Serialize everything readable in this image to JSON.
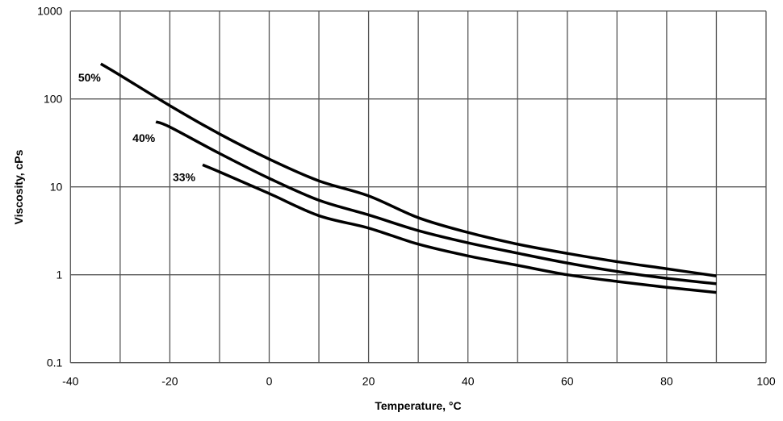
{
  "chart_data": {
    "type": "line",
    "title": "",
    "xlabel": "Temperature, °C",
    "xlabel_main": "Temperature, ",
    "xlabel_sup": "o",
    "xlabel_unit": "C",
    "ylabel": "Viscosity, cPs",
    "xlim": [
      -40,
      100
    ],
    "ylim": [
      0.1,
      1000
    ],
    "yscale": "log",
    "grid": true,
    "legend": "inline labels",
    "x_ticks": [
      "-40",
      "-20",
      "0",
      "20",
      "40",
      "60",
      "80",
      "100"
    ],
    "y_ticks": [
      "0.1",
      "1",
      "10",
      "100",
      "1000"
    ],
    "series": [
      {
        "name": "50%",
        "color": "#000000",
        "x": [
          -33.9,
          -30,
          -20,
          -10,
          0,
          10,
          20,
          30,
          40,
          50,
          60,
          70,
          80,
          90
        ],
        "y": [
          251,
          186,
          84,
          40,
          20.7,
          11.7,
          7.9,
          4.46,
          3.03,
          2.23,
          1.75,
          1.41,
          1.17,
          0.97
        ]
      },
      {
        "name": "40%",
        "color": "#000000",
        "x": [
          -22.8,
          -20,
          -10,
          0,
          10,
          20,
          30,
          40,
          50,
          60,
          70,
          80,
          90
        ],
        "y": [
          55,
          48,
          24,
          12.5,
          7.05,
          4.8,
          3.18,
          2.31,
          1.76,
          1.36,
          1.09,
          0.91,
          0.79
        ]
      },
      {
        "name": "33%",
        "color": "#000000",
        "x": [
          -13.4,
          -10,
          0,
          10,
          20,
          30,
          40,
          50,
          60,
          70,
          80,
          90
        ],
        "y": [
          17.8,
          14.8,
          8.4,
          4.7,
          3.4,
          2.23,
          1.64,
          1.28,
          1.0,
          0.84,
          0.72,
          0.63
        ]
      }
    ]
  }
}
